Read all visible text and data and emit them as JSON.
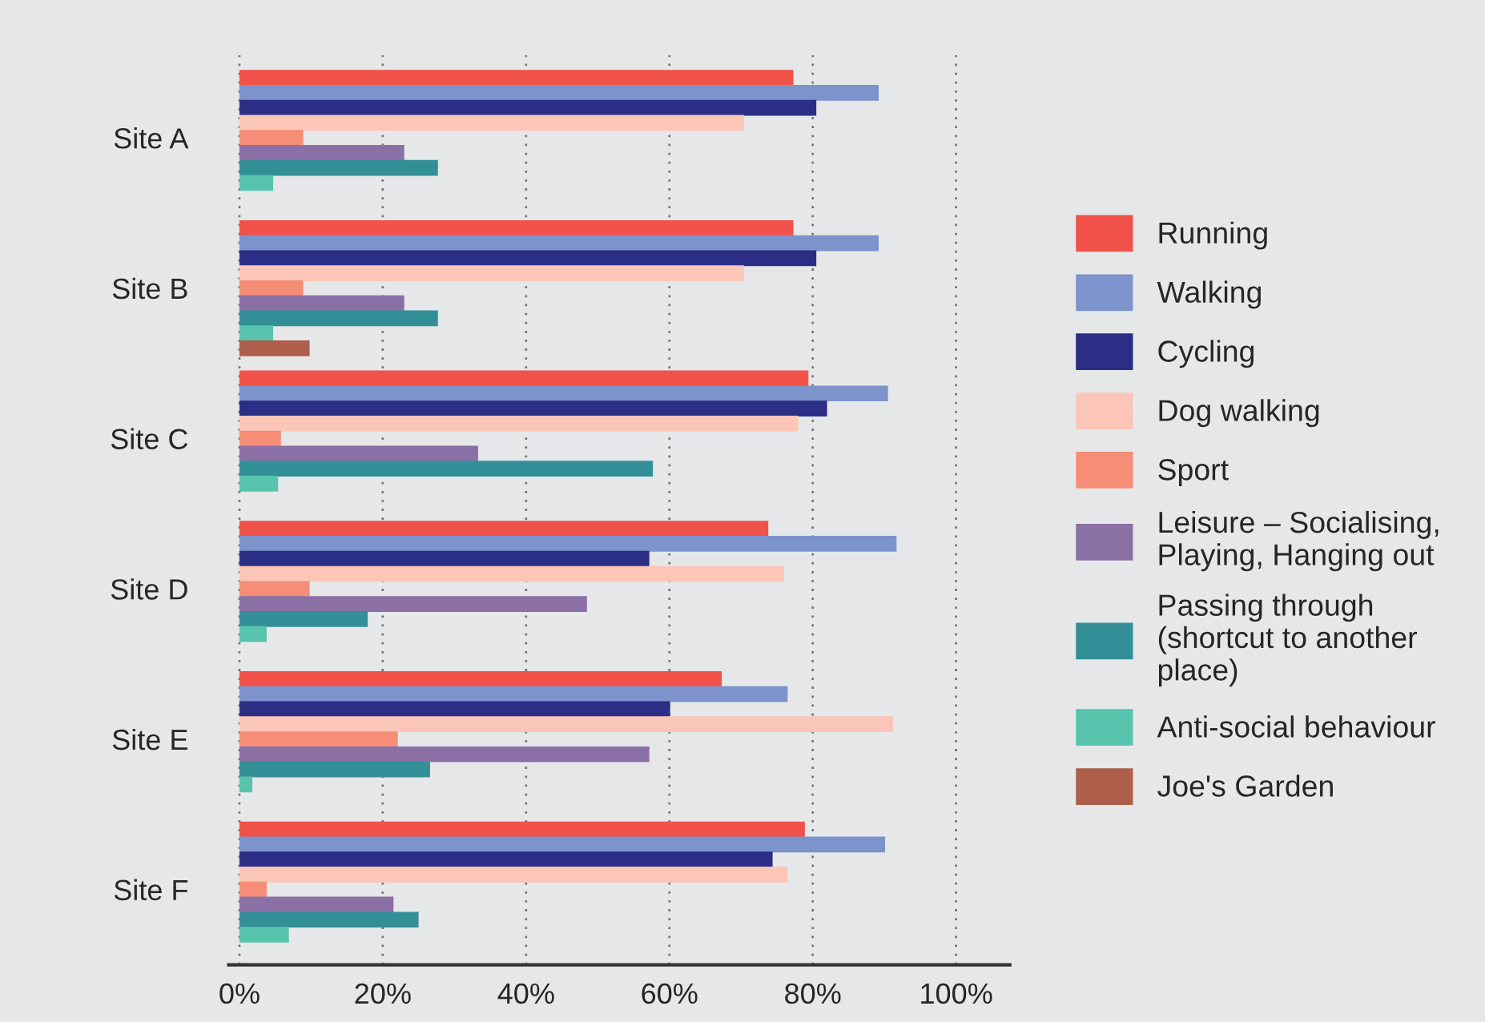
{
  "chart_data": {
    "type": "bar",
    "orientation": "horizontal",
    "categories": [
      "Site A",
      "Site B",
      "Site C",
      "Site D",
      "Site E",
      "Site F"
    ],
    "series": [
      {
        "name": "Running",
        "color": "#f0524a",
        "values": [
          77.3,
          77.3,
          79.4,
          73.8,
          67.3,
          78.9
        ]
      },
      {
        "name": "Walking",
        "color": "#7d93cb",
        "values": [
          89.2,
          89.2,
          90.5,
          91.7,
          76.5,
          90.1
        ]
      },
      {
        "name": "Cycling",
        "color": "#2a2e85",
        "values": [
          80.5,
          80.5,
          82.0,
          57.2,
          60.1,
          74.4
        ]
      },
      {
        "name": "Dog walking",
        "color": "#fbc6b8",
        "values": [
          70.4,
          70.4,
          78.0,
          76.0,
          91.2,
          76.5
        ]
      },
      {
        "name": "Sport",
        "color": "#f58d77",
        "values": [
          8.9,
          8.9,
          5.8,
          9.8,
          22.1,
          3.8
        ]
      },
      {
        "name": "Leisure – Socialising,\nPlaying, Hanging out",
        "color": "#8b70a6",
        "values": [
          23.0,
          23.0,
          33.3,
          48.5,
          57.2,
          21.5
        ]
      },
      {
        "name": "Passing through\n(shortcut to another\nplace)",
        "color": "#338f97",
        "values": [
          27.7,
          27.7,
          57.7,
          17.9,
          26.6,
          25.0
        ]
      },
      {
        "name": "Anti-social behaviour",
        "color": "#58c4ad",
        "values": [
          4.7,
          4.7,
          5.4,
          3.8,
          1.8,
          6.9
        ]
      },
      {
        "name": "Joe's Garden",
        "color": "#ad5f4c",
        "values": [
          null,
          9.8,
          null,
          null,
          null,
          null
        ]
      }
    ],
    "xlim": [
      -1.5,
      107.5
    ],
    "xticks": [
      {
        "value": 0,
        "label": "0%"
      },
      {
        "value": 20,
        "label": "20%"
      },
      {
        "value": 40,
        "label": "40%"
      },
      {
        "value": 60,
        "label": "60%"
      },
      {
        "value": 80,
        "label": "80%"
      },
      {
        "value": 100,
        "label": "100%"
      }
    ],
    "grid": "x",
    "legend": "right"
  }
}
